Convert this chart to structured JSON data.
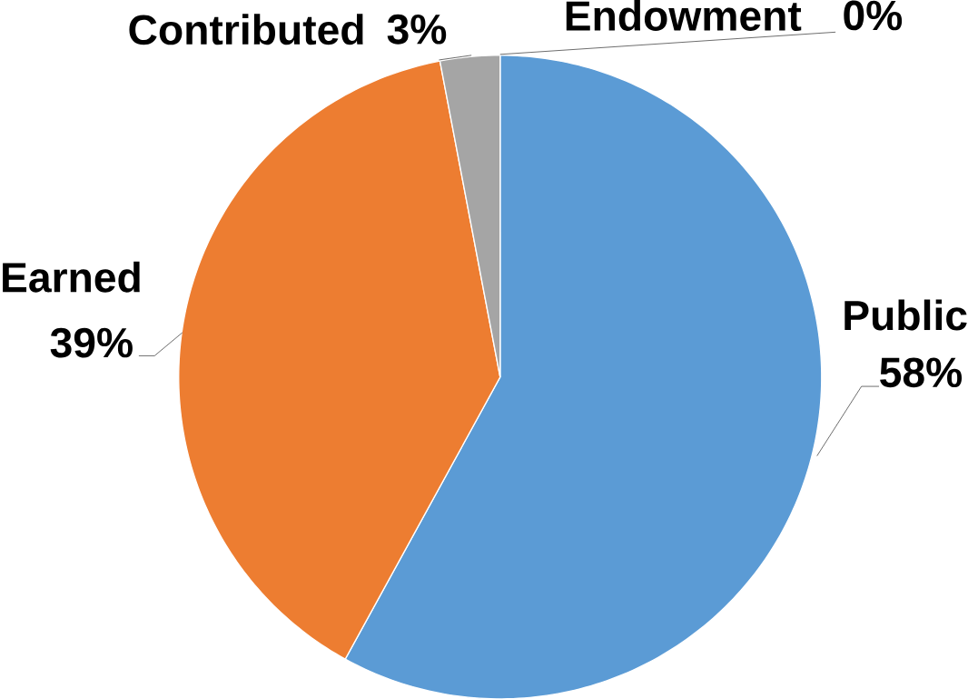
{
  "chart_data": {
    "type": "pie",
    "categories": [
      "Public",
      "Earned",
      "Contributed",
      "Endowment"
    ],
    "values": [
      58,
      39,
      3,
      0
    ],
    "value_labels": [
      "58%",
      "39%",
      "3%",
      "0%"
    ],
    "colors": [
      "#5b9bd5",
      "#ed7d31",
      "#a5a5a5",
      "#ffc000"
    ],
    "legend": false
  }
}
